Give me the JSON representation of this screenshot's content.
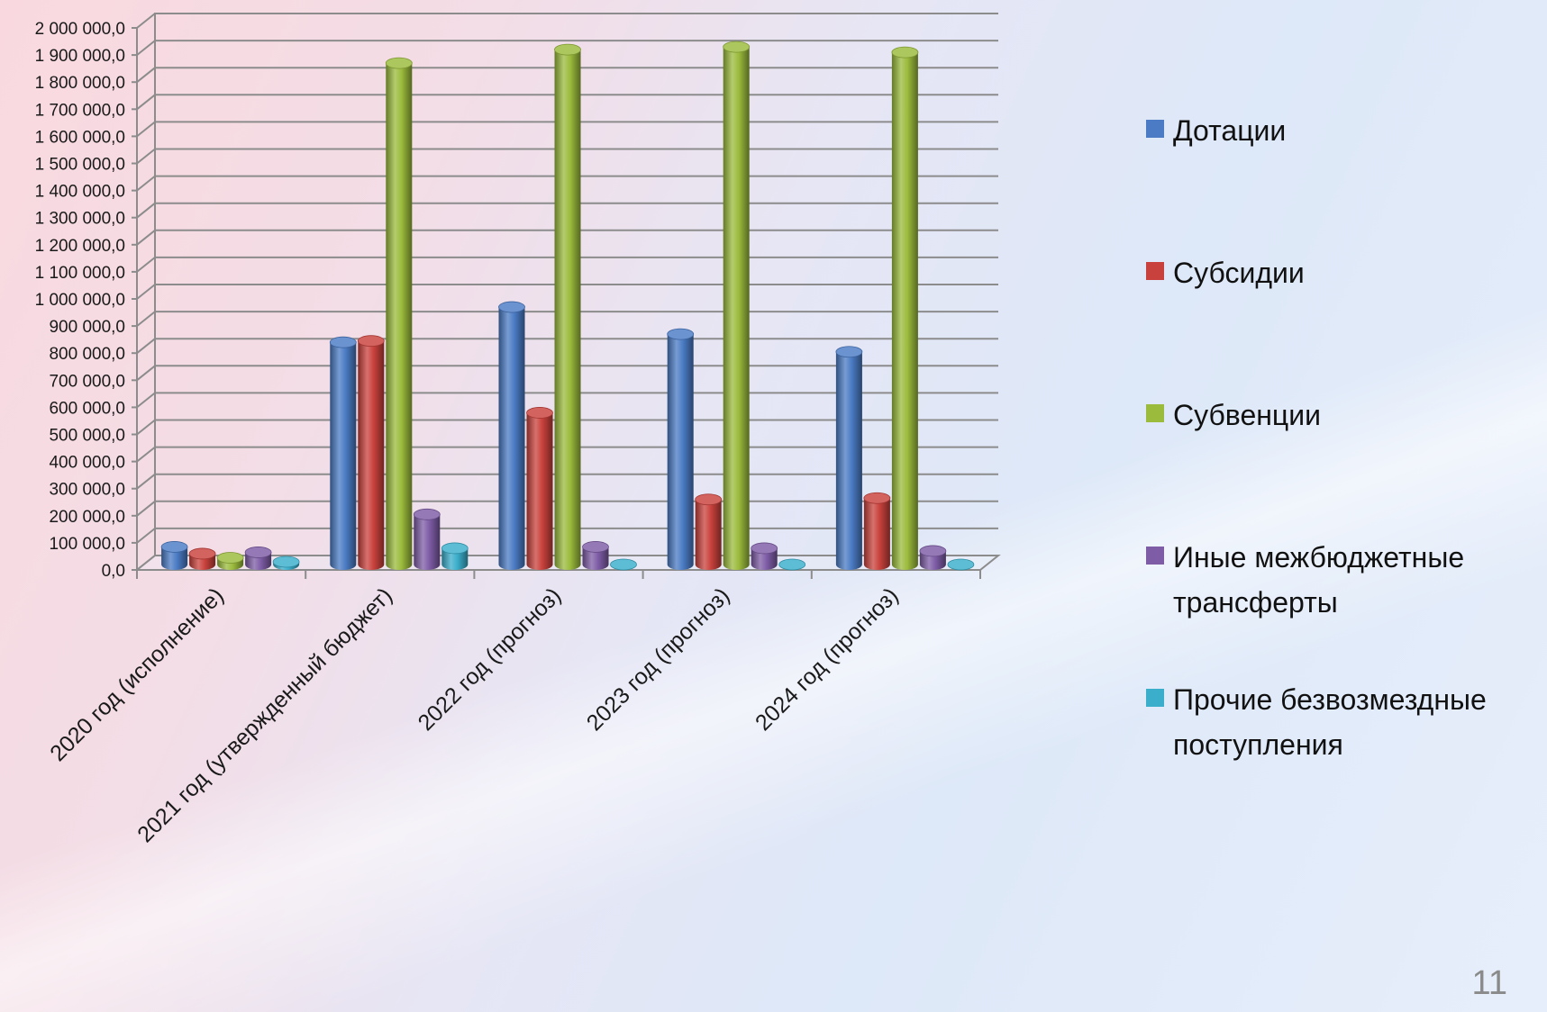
{
  "page_number": "11",
  "chart_data": {
    "type": "bar",
    "categories": [
      "2020 год (исполнение)",
      "2021 год (утвержденный бюджет)",
      "2022 год (прогноз)",
      "2023 год (прогноз)",
      "2024 год (прогноз)"
    ],
    "series": [
      {
        "name": "Дотации",
        "color": "#4a7bc4",
        "values": [
          65000,
          820000,
          950000,
          850000,
          785000
        ]
      },
      {
        "name": "Субсидии",
        "color": "#c9413c",
        "values": [
          40000,
          825000,
          560000,
          240000,
          245000
        ]
      },
      {
        "name": "Субвенции",
        "color": "#9bbb3c",
        "values": [
          25000,
          1850000,
          1900000,
          1910000,
          1890000
        ]
      },
      {
        "name": "Иные межбюджетные трансферты",
        "color": "#7e5ca6",
        "values": [
          45000,
          185000,
          65000,
          60000,
          50000
        ]
      },
      {
        "name": "Прочие безвозмездные поступления",
        "color": "#3aaecb",
        "values": [
          10000,
          60000,
          0,
          0,
          0
        ]
      }
    ],
    "ylim": [
      0,
      2000000
    ],
    "y_ticks": [
      "0,0",
      "100 000,0",
      "200 000,0",
      "300 000,0",
      "400 000,0",
      "500 000,0",
      "600 000,0",
      "700 000,0",
      "800 000,0",
      "900 000,0",
      "1 000 000,0",
      "1 100 000,0",
      "1 200 000,0",
      "1 300 000,0",
      "1 400 000,0",
      "1 500 000,0",
      "1 600 000,0",
      "1 700 000,0",
      "1 800 000,0",
      "1 900 000,0",
      "2 000 000,0"
    ],
    "grid": true,
    "legend_position": "right",
    "title": "",
    "xlabel": "",
    "ylabel": ""
  }
}
